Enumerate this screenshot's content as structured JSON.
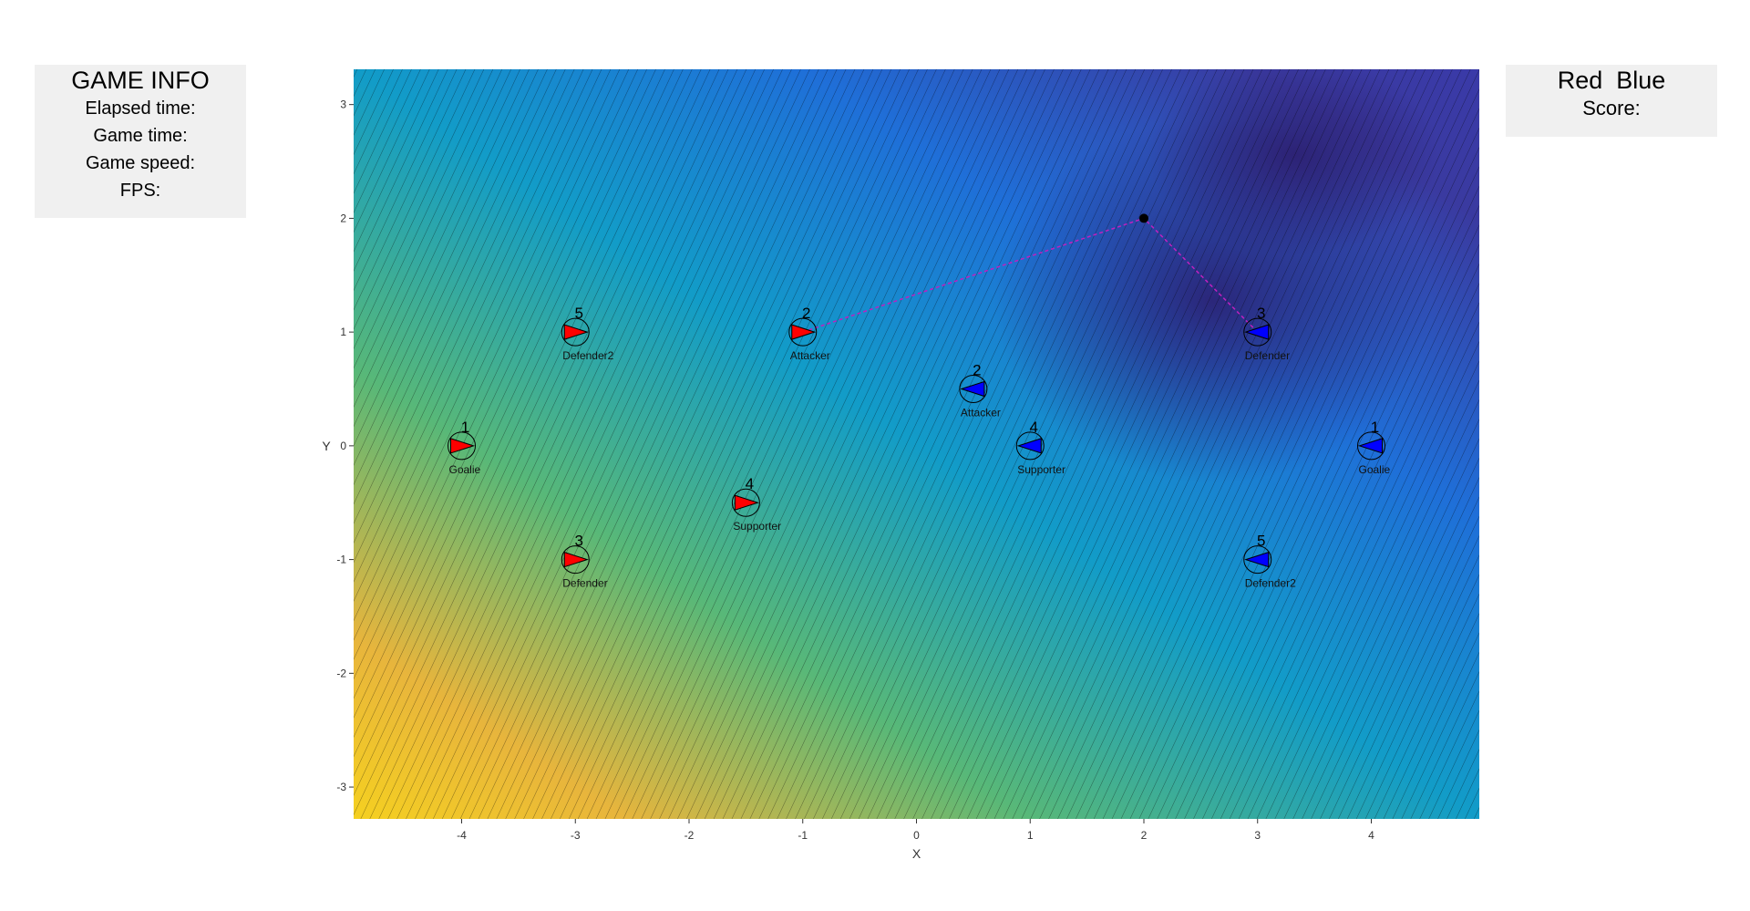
{
  "info_panel": {
    "title": "GAME INFO",
    "lines": [
      "Elapsed time:",
      "Game time:",
      "Game speed:",
      "FPS:"
    ]
  },
  "score_panel": {
    "teams": "Red  Blue",
    "label": "Score:"
  },
  "chart_data": {
    "type": "scatter",
    "x_label": "X",
    "y_label": "Y",
    "xlim": [
      -4.95,
      4.95
    ],
    "ylim": [
      -3.28,
      3.31
    ],
    "xticks": [
      -4,
      -3,
      -2,
      -1,
      0,
      1,
      2,
      3,
      4
    ],
    "yticks": [
      -3,
      -2,
      -1,
      0,
      1,
      2,
      3
    ],
    "series": [
      {
        "color": "#ff0000",
        "direction": "right",
        "x": [
          -4,
          -3,
          -3,
          -1,
          -1.5
        ],
        "values": [
          0,
          1,
          -1,
          1,
          -0.5
        ],
        "numbers": [
          1,
          5,
          3,
          2,
          4
        ],
        "roles": [
          "Goalie",
          "Defender2",
          "Defender",
          "Attacker",
          "Supporter"
        ]
      },
      {
        "color": "#0000ff",
        "direction": "left",
        "x": [
          4,
          3,
          3,
          0.5,
          1
        ],
        "values": [
          0,
          1,
          -1,
          0.5,
          0
        ],
        "numbers": [
          1,
          3,
          5,
          2,
          4
        ],
        "roles": [
          "Goalie",
          "Defender",
          "Defender2",
          "Attacker",
          "Supporter"
        ]
      }
    ],
    "ball": {
      "x": 2,
      "y": 2,
      "color": "#000000"
    }
  }
}
